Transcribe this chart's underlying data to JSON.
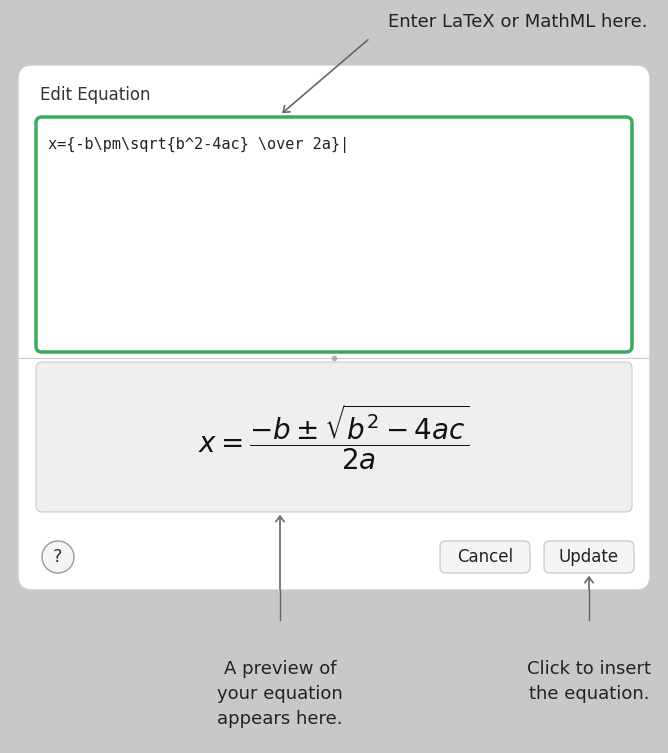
{
  "bg_color": "#c8c8c8",
  "dialog_bg": "#ffffff",
  "edit_label": "Edit Equation",
  "edit_label_fontsize": 12,
  "textbox_latex": "x={-b\\pm\\sqrt{b^2-4ac} \\over 2a}|",
  "textbox_border_color": "#3aaa5c",
  "textbox_bg": "#ffffff",
  "preview_bg": "#efefef",
  "formula_latex": "$x = \\dfrac{-b \\pm \\sqrt{b^2 - 4ac}}{2a}$",
  "help_btn_label": "?",
  "cancel_btn_label": "Cancel",
  "update_btn_label": "Update",
  "btn_bg": "#f5f5f5",
  "btn_border": "#cccccc",
  "top_annotation": "Enter LaTeX or MathML here.",
  "bottom_left_annotation_lines": [
    "A preview of",
    "your equation",
    "appears here."
  ],
  "bottom_right_annotation_lines": [
    "Click to insert",
    "the equation."
  ],
  "annotation_fontsize": 13,
  "arrow_color": "#666666",
  "divider_color": "#cccccc",
  "dialog_border_color": "#cccccc"
}
